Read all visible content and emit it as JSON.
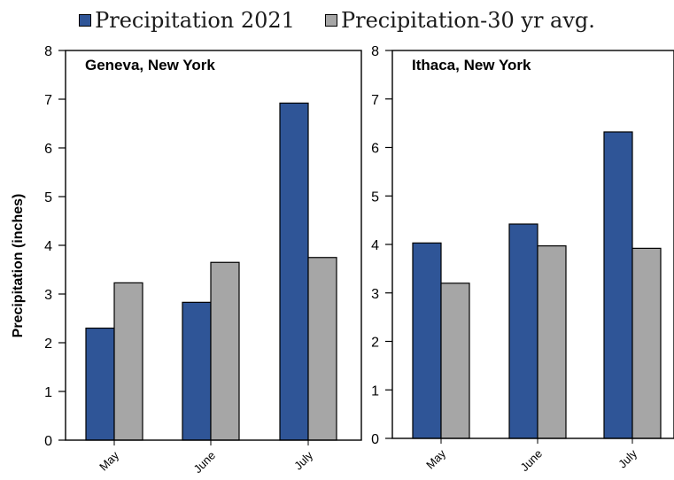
{
  "legend": {
    "items": [
      {
        "label": "Precipitation 2021",
        "color": "#2f5597"
      },
      {
        "label": "Precipitation-30 yr avg.",
        "color": "#a6a6a6"
      }
    ]
  },
  "chart_data": [
    {
      "type": "bar",
      "title": "Geneva, New York",
      "ylabel": "Precipitation (inches)",
      "xlabel": "",
      "categories": [
        "May",
        "June",
        "July"
      ],
      "ylim": [
        0,
        8
      ],
      "yticks": [
        0,
        1,
        2,
        3,
        4,
        5,
        6,
        7,
        8
      ],
      "grid": false,
      "series": [
        {
          "name": "Precipitation 2021",
          "color": "#2f5597",
          "values": [
            2.3,
            2.83,
            6.92
          ]
        },
        {
          "name": "Precipitation-30 yr avg.",
          "color": "#a6a6a6",
          "values": [
            3.23,
            3.65,
            3.75
          ]
        }
      ]
    },
    {
      "type": "bar",
      "title": "Ithaca, New York",
      "ylabel": "",
      "xlabel": "",
      "categories": [
        "May",
        "June",
        "July"
      ],
      "ylim": [
        0,
        8
      ],
      "yticks": [
        0,
        1,
        2,
        3,
        4,
        5,
        6,
        7,
        8
      ],
      "grid": false,
      "series": [
        {
          "name": "Precipitation 2021",
          "color": "#2f5597",
          "values": [
            4.03,
            4.42,
            6.32
          ]
        },
        {
          "name": "Precipitation-30 yr avg.",
          "color": "#a6a6a6",
          "values": [
            3.2,
            3.97,
            3.92
          ]
        }
      ]
    }
  ]
}
